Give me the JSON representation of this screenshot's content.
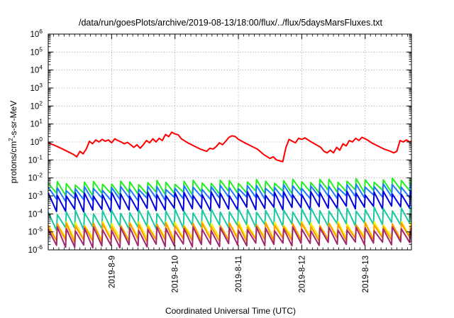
{
  "chart_data": {
    "type": "line",
    "title": "/data/run/goesPlots/archive/2019-08-13/18:00/flux/../flux/5daysMarsFluxes.txt",
    "xlabel": "Coordinated Universal Time (UTC)",
    "ylabel_main": "protons/cm",
    "ylabel_sup": "2",
    "ylabel_rest": "-s-sr-MeV",
    "x_ticks": [
      "2019-8-9",
      "2019-8-10",
      "2019-8-11",
      "2019-8-12",
      "2019-8-13"
    ],
    "x_tick_days": [
      1,
      2,
      3,
      4,
      5
    ],
    "x_range_days": [
      0,
      5.73
    ],
    "y_scale": "log",
    "y_range": [
      1e-06,
      1000000.0
    ],
    "y_tick_exponents": [
      -6,
      -5,
      -4,
      -3,
      -2,
      -1,
      0,
      1,
      2,
      3,
      4,
      5,
      6
    ],
    "grid": true,
    "legend": "none",
    "colors": {
      "red": "#ff0000",
      "green": "#22ee22",
      "blue_light": "#1e78ff",
      "blue": "#0000dd",
      "teal": "#19c8a0",
      "yellow": "#ffee00",
      "orange": "#ff9900",
      "purple": "#a0286e"
    },
    "series": [
      {
        "color": "#ff0000",
        "values": [
          [
            0.0,
            0.9
          ],
          [
            0.1,
            0.65
          ],
          [
            0.2,
            0.45
          ],
          [
            0.3,
            0.3
          ],
          [
            0.4,
            0.2
          ],
          [
            0.45,
            0.15
          ],
          [
            0.5,
            0.3
          ],
          [
            0.55,
            0.22
          ],
          [
            0.6,
            0.4
          ],
          [
            0.65,
            1.1
          ],
          [
            0.7,
            0.8
          ],
          [
            0.75,
            1.3
          ],
          [
            0.8,
            1.0
          ],
          [
            0.85,
            1.4
          ],
          [
            0.9,
            1.1
          ],
          [
            0.95,
            1.3
          ],
          [
            1.0,
            0.9
          ],
          [
            1.05,
            1.5
          ],
          [
            1.1,
            1.2
          ],
          [
            1.15,
            1.0
          ],
          [
            1.2,
            0.8
          ],
          [
            1.25,
            0.95
          ],
          [
            1.3,
            0.7
          ],
          [
            1.35,
            0.5
          ],
          [
            1.4,
            0.7
          ],
          [
            1.45,
            0.45
          ],
          [
            1.5,
            0.7
          ],
          [
            1.55,
            1.2
          ],
          [
            1.6,
            0.9
          ],
          [
            1.65,
            1.5
          ],
          [
            1.7,
            1.0
          ],
          [
            1.75,
            1.6
          ],
          [
            1.8,
            1.2
          ],
          [
            1.85,
            2.6
          ],
          [
            1.9,
            2.0
          ],
          [
            1.95,
            3.5
          ],
          [
            2.0,
            2.8
          ],
          [
            2.05,
            2.5
          ],
          [
            2.1,
            1.5
          ],
          [
            2.2,
            0.9
          ],
          [
            2.3,
            0.6
          ],
          [
            2.4,
            0.4
          ],
          [
            2.5,
            0.3
          ],
          [
            2.55,
            0.45
          ],
          [
            2.6,
            0.4
          ],
          [
            2.65,
            0.55
          ],
          [
            2.7,
            0.9
          ],
          [
            2.75,
            0.7
          ],
          [
            2.8,
            1.1
          ],
          [
            2.85,
            1.8
          ],
          [
            2.9,
            2.2
          ],
          [
            2.95,
            2.0
          ],
          [
            3.0,
            1.4
          ],
          [
            3.1,
            0.9
          ],
          [
            3.2,
            0.6
          ],
          [
            3.3,
            0.4
          ],
          [
            3.4,
            0.2
          ],
          [
            3.5,
            0.12
          ],
          [
            3.55,
            0.15
          ],
          [
            3.6,
            0.1
          ],
          [
            3.65,
            0.09
          ],
          [
            3.7,
            0.08
          ],
          [
            3.75,
            0.5
          ],
          [
            3.8,
            1.4
          ],
          [
            3.85,
            1.1
          ],
          [
            3.9,
            0.9
          ],
          [
            3.95,
            1.6
          ],
          [
            4.0,
            1.4
          ],
          [
            4.05,
            1.7
          ],
          [
            4.1,
            1.3
          ],
          [
            4.15,
            1.0
          ],
          [
            4.2,
            0.8
          ],
          [
            4.3,
            0.5
          ],
          [
            4.35,
            0.3
          ],
          [
            4.4,
            0.25
          ],
          [
            4.45,
            0.35
          ],
          [
            4.5,
            0.25
          ],
          [
            4.55,
            0.5
          ],
          [
            4.6,
            0.35
          ],
          [
            4.65,
            0.8
          ],
          [
            4.7,
            0.6
          ],
          [
            4.75,
            1.2
          ],
          [
            4.8,
            1.0
          ],
          [
            4.85,
            1.6
          ],
          [
            4.9,
            1.2
          ],
          [
            4.95,
            1.8
          ],
          [
            5.0,
            1.5
          ],
          [
            5.05,
            1.2
          ],
          [
            5.1,
            0.9
          ],
          [
            5.2,
            0.6
          ],
          [
            5.3,
            0.4
          ],
          [
            5.4,
            0.3
          ],
          [
            5.45,
            0.25
          ],
          [
            5.5,
            0.3
          ],
          [
            5.55,
            1.2
          ],
          [
            5.6,
            1.0
          ],
          [
            5.65,
            1.3
          ],
          [
            5.7,
            1.0
          ],
          [
            5.73,
            1.1
          ]
        ]
      },
      {
        "color": "#22ee22",
        "peak": 0.005,
        "low": 0.0012,
        "peak_end": 0.008,
        "low_end": 0.002
      },
      {
        "color": "#1e78ff",
        "peak": 0.0025,
        "low": 0.0006,
        "peak_end": 0.004,
        "low_end": 0.001
      },
      {
        "color": "#0000dd",
        "peak": 0.0012,
        "low": 0.00015,
        "peak_end": 0.0015,
        "low_end": 0.00025
      },
      {
        "color": "#19c8a0",
        "peak": 0.00012,
        "low": 1.5e-05,
        "peak_end": 0.0002,
        "low_end": 3e-05
      },
      {
        "color": "#ffee00",
        "peak": 3e-05,
        "low": 4e-06,
        "peak_end": 3e-05,
        "low_end": 5e-06
      },
      {
        "color": "#ff9900",
        "peak": 2.5e-05,
        "low": 3e-06,
        "peak_end": 2.5e-05,
        "low_end": 4e-06
      },
      {
        "color": "#a0286e",
        "peak": 1.5e-05,
        "low": 1.5e-06,
        "peak_end": 1.5e-05,
        "low_end": 2.5e-06
      }
    ]
  }
}
